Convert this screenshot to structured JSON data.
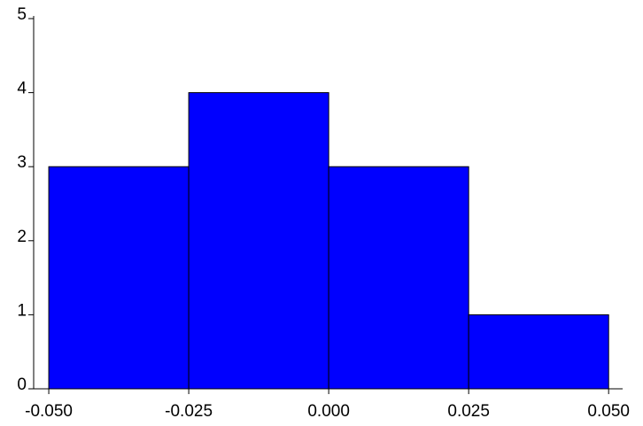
{
  "chart_data": {
    "type": "histogram",
    "bins": [
      -0.05,
      -0.025,
      0,
      0.025,
      0.05
    ],
    "values": [
      3,
      4,
      3,
      1
    ],
    "color": "#0000ff",
    "xlim": [
      -0.0527,
      0.0525
    ],
    "ylim": [
      0,
      5
    ],
    "xticks": [
      {
        "value": -0.05,
        "label": "-0.050"
      },
      {
        "value": -0.025,
        "label": "-0.025"
      },
      {
        "value": 0,
        "label": "0.000"
      },
      {
        "value": 0.025,
        "label": "0.025"
      },
      {
        "value": 0.05,
        "label": "0.050"
      }
    ],
    "yticks": [
      0,
      1,
      2,
      3,
      4,
      5
    ]
  }
}
